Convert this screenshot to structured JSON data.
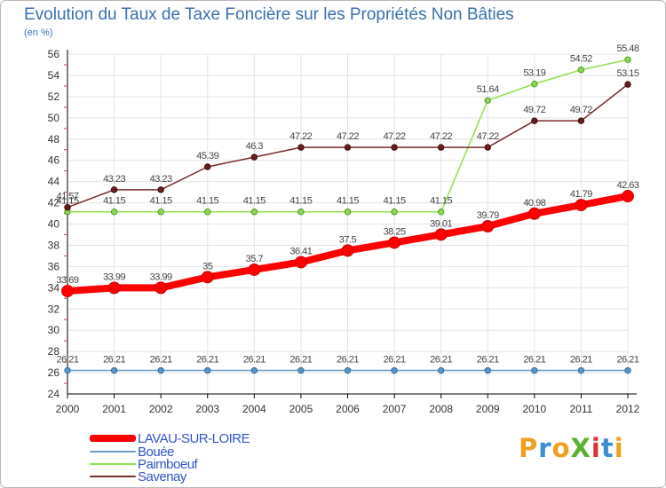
{
  "title": "Evolution du Taux de Taxe Foncière sur les Propriétés Non Bâties",
  "unit_label": "(en %)",
  "logo": {
    "text": "ProXiti",
    "letters": [
      "P",
      "r",
      "o",
      "X",
      "i",
      "t",
      "i"
    ],
    "colors": [
      "#f0a020",
      "#3a8fd0",
      "#f0a020",
      "#5bb030",
      "#e03030",
      "#3a8fd0",
      "#f0a020"
    ]
  },
  "colors": {
    "grid": "#e3e3e3",
    "axis": "#000000",
    "tick_label": "#333333",
    "point_label": "#444444"
  },
  "chart_data": {
    "type": "line",
    "title": "Evolution du Taux de Taxe Foncière sur les Propriétés Non Bâties",
    "ylabel": "(en %)",
    "xlabel": "",
    "x": [
      2000,
      2001,
      2002,
      2003,
      2004,
      2005,
      2006,
      2007,
      2008,
      2009,
      2010,
      2011,
      2012
    ],
    "ylim": [
      24,
      56
    ],
    "yticks": [
      24,
      26,
      28,
      30,
      32,
      34,
      36,
      38,
      40,
      42,
      44,
      46,
      48,
      50,
      52,
      54,
      56
    ],
    "grid": true,
    "legend_position": "bottom-left",
    "series": [
      {
        "name": "LAVAU-SUR-LOIRE",
        "color": "#ff0000",
        "line_color": "#ff0000",
        "width": 8,
        "marker": "#ff0000",
        "marker_stroke": "#cc0000",
        "values": [
          33.69,
          33.99,
          33.99,
          35,
          35.7,
          36.41,
          37.5,
          38.25,
          39.01,
          39.79,
          40.98,
          41.79,
          42.63
        ],
        "labels": [
          "33.69",
          "33.99",
          "33.99",
          "35",
          "35.7",
          "36.41",
          "37.5",
          "38.25",
          "39.01",
          "39.79",
          "40.98",
          "41.79",
          "42.63"
        ]
      },
      {
        "name": "Bouée",
        "color": "#6a9ec8",
        "line_color": "#6a9ec8",
        "width": 1.5,
        "marker": "#5b95c8",
        "marker_stroke": "#2f6da3",
        "values": [
          26.21,
          26.21,
          26.21,
          26.21,
          26.21,
          26.21,
          26.21,
          26.21,
          26.21,
          26.21,
          26.21,
          26.21,
          26.21
        ],
        "labels": [
          "26.21",
          "26.21",
          "26.21",
          "26.21",
          "26.21",
          "26.21",
          "26.21",
          "26.21",
          "26.21",
          "26.21",
          "26.21",
          "26.21",
          "26.21"
        ]
      },
      {
        "name": "Paimboeuf",
        "color": "#90e050",
        "line_color": "#90e050",
        "width": 1.5,
        "marker": "#8ed657",
        "marker_stroke": "#4f9a22",
        "values": [
          41.15,
          41.15,
          41.15,
          41.15,
          41.15,
          41.15,
          41.15,
          41.15,
          41.15,
          51.64,
          53.19,
          54.52,
          55.48
        ],
        "labels": [
          "41.15",
          "41.15",
          "41.15",
          "41.15",
          "41.15",
          "41.15",
          "41.15",
          "41.15",
          "41.15",
          "51.64",
          "53.19",
          "54.52",
          "55.48"
        ]
      },
      {
        "name": "Savenay",
        "color": "#7a2a2a",
        "line_color": "#7a2a2a",
        "width": 1.5,
        "marker": "#6b1d1d",
        "marker_stroke": "#3a0a0a",
        "values": [
          41.57,
          43.23,
          43.23,
          45.39,
          46.3,
          47.22,
          47.22,
          47.22,
          47.22,
          47.22,
          49.72,
          49.72,
          53.15
        ],
        "labels": [
          "41.57",
          "43.23",
          "43.23",
          "45.39",
          "46.3",
          "47.22",
          "47.22",
          "47.22",
          "47.22",
          "47.22",
          "49.72",
          "49.72",
          "53.15"
        ]
      }
    ]
  }
}
